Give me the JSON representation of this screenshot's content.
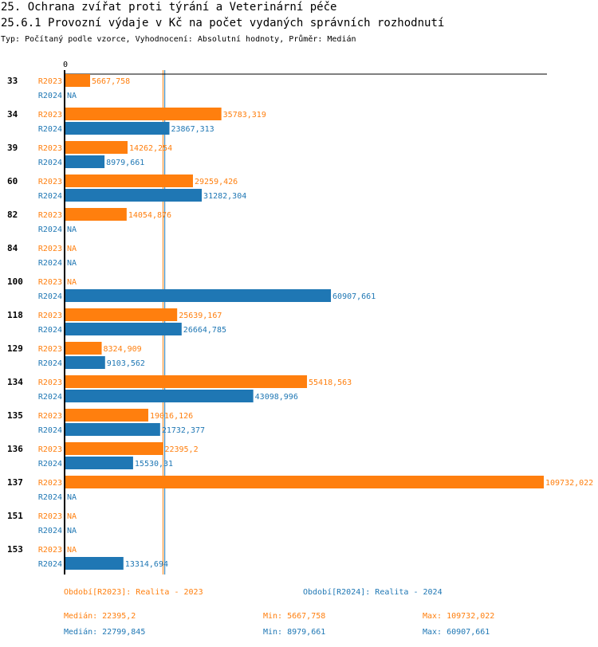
{
  "header": {
    "title": "25. Ochrana zvířat proti týrání a Veterinární péče",
    "subtitle": "25.6.1 Provozní výdaje v Kč na počet vydaných správních rozhodnutí",
    "info": "Typ: Počítaný podle vzorce, Vyhodnocení: Absolutní hodnoty, Průměr: Medián"
  },
  "colors": {
    "R2023": "#ff7f0e",
    "R2024": "#1f77b4",
    "axis": "#000000"
  },
  "chart_data": {
    "type": "bar",
    "orientation": "horizontal",
    "title": "25.6.1 Provozní výdaje v Kč na počet vydaných správních rozhodnutí",
    "xlabel": "",
    "ylabel": "",
    "x_tick_labels": [
      "0"
    ],
    "xlim": [
      0,
      109732.022
    ],
    "categories": [
      "33",
      "34",
      "39",
      "60",
      "82",
      "84",
      "100",
      "118",
      "129",
      "134",
      "135",
      "136",
      "137",
      "151",
      "153"
    ],
    "series": [
      {
        "name": "R2023",
        "color": "#ff7f0e",
        "values": [
          5667.758,
          35783.319,
          14262.254,
          29259.426,
          14054.876,
          null,
          null,
          25639.167,
          8324.909,
          55418.563,
          19016.126,
          22395.2,
          109732.022,
          null,
          null
        ],
        "labels": [
          "5667,758",
          "35783,319",
          "14262,254",
          "29259,426",
          "14054,876",
          "NA",
          "NA",
          "25639,167",
          "8324,909",
          "55418,563",
          "19016,126",
          "22395,2",
          "109732,022",
          "NA",
          "NA"
        ]
      },
      {
        "name": "R2024",
        "color": "#1f77b4",
        "values": [
          null,
          23867.313,
          8979.661,
          31282.304,
          null,
          null,
          60907.661,
          26664.785,
          9103.562,
          43098.996,
          21732.377,
          15530.31,
          null,
          null,
          13314.694
        ],
        "labels": [
          "NA",
          "23867,313",
          "8979,661",
          "31282,304",
          "NA",
          "NA",
          "60907,661",
          "26664,785",
          "9103,562",
          "43098,996",
          "21732,377",
          "15530,31",
          "NA",
          "NA",
          "13314,694"
        ]
      }
    ],
    "reference_lines": [
      {
        "name": "median-R2023",
        "value": 22395.2,
        "color": "#ff7f0e"
      },
      {
        "name": "median-R2024",
        "value": 22799.845,
        "color": "#1f77b4"
      }
    ],
    "grid": false
  },
  "legend": {
    "r2023_period": "Období[R2023]: Realita - 2023",
    "r2024_period": "Období[R2024]: Realita - 2024",
    "r2023_median": "Medián: 22395,2",
    "r2023_min": "Min: 5667,758",
    "r2023_max": "Max: 109732,022",
    "r2024_median": "Medián: 22799,845",
    "r2024_min": "Min: 8979,661",
    "r2024_max": "Max: 60907,661"
  }
}
